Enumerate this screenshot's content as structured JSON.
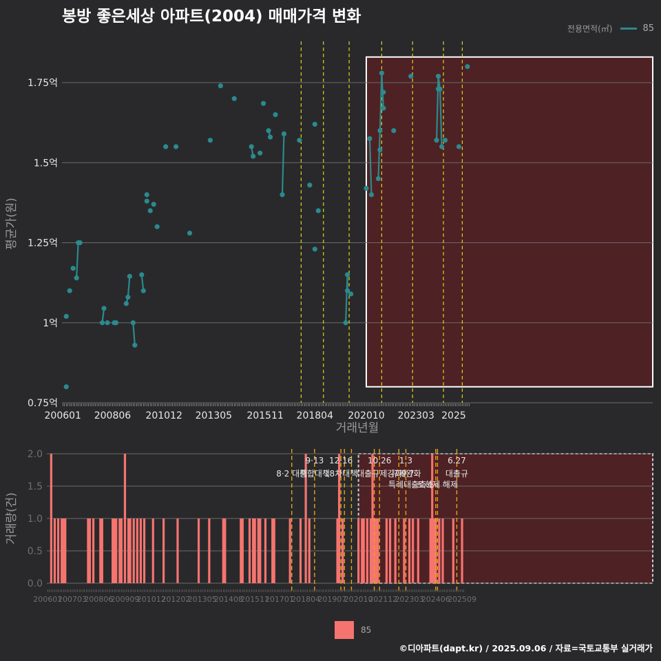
{
  "title": "봉방 좋은세상 아파트(2004) 매매가격 변화",
  "credit": "©디아파트(dapt.kr) / 2025.09.06 / 자료=국토교통부 실거래가",
  "colors": {
    "background": "#29292b",
    "price_line": "#2b8a8e",
    "bar": "#f57470",
    "vline_yellow": "#e0d21a",
    "vline_orange": "#e8a317",
    "highlight_fill": "#4e2124",
    "grid": "#6a6a6a"
  },
  "legend_top": {
    "title": "전용면적(㎡)",
    "value": "85"
  },
  "legend_bottom": {
    "value": "85"
  },
  "chart_data": [
    {
      "type": "line",
      "title": "봉방 좋은세상 아파트(2004) 매매가격 변화",
      "xlabel": "거래년월",
      "ylabel": "평균가(원)",
      "x_ticks": [
        "200601",
        "200806",
        "201012",
        "201305",
        "201511",
        "201804",
        "202010",
        "202303",
        "2025"
      ],
      "y_ticks": [
        "0.75억",
        "1억",
        "1.25억",
        "1.5억",
        "1.75억"
      ],
      "ylim": [
        0.75,
        1.85
      ],
      "unit": "억",
      "highlight": {
        "x_start": "2020-10",
        "x_end": "2025-09",
        "y_start": 0.8,
        "y_end": 1.83
      },
      "policy_lines": [
        "2017-08",
        "2018-09",
        "2019-12",
        "2021-07",
        "2023-01",
        "2024-07",
        "2025-06"
      ],
      "series": [
        {
          "name": "85",
          "points": [
            [
              "2006-03",
              0.8
            ],
            [
              "2006-03",
              1.02
            ],
            [
              "2006-05",
              1.1
            ],
            [
              "2006-07",
              1.17
            ],
            [
              "2006-09",
              1.14
            ],
            [
              "2006-10",
              1.25
            ],
            [
              "2006-11",
              1.25
            ],
            [
              "2007-12",
              1.0
            ],
            [
              "2008-01",
              1.045
            ],
            [
              "2008-03",
              1.0
            ],
            [
              "2008-07",
              1.0
            ],
            [
              "2008-08",
              1.0
            ],
            [
              "2009-02",
              1.06
            ],
            [
              "2009-03",
              1.08
            ],
            [
              "2009-04",
              1.145
            ],
            [
              "2009-06",
              1.0
            ],
            [
              "2009-07",
              0.93
            ],
            [
              "2009-11",
              1.15
            ],
            [
              "2009-12",
              1.1
            ],
            [
              "2010-02",
              1.4
            ],
            [
              "2010-02",
              1.38
            ],
            [
              "2010-04",
              1.35
            ],
            [
              "2010-06",
              1.37
            ],
            [
              "2010-08",
              1.3
            ],
            [
              "2011-01",
              1.55
            ],
            [
              "2011-07",
              1.55
            ],
            [
              "2012-03",
              1.28
            ],
            [
              "2013-03",
              1.57
            ],
            [
              "2013-09",
              1.74
            ],
            [
              "2014-05",
              1.7
            ],
            [
              "2015-03",
              1.55
            ],
            [
              "2015-04",
              1.52
            ],
            [
              "2015-08",
              1.53
            ],
            [
              "2015-10",
              1.685
            ],
            [
              "2016-01",
              1.6
            ],
            [
              "2016-02",
              1.58
            ],
            [
              "2016-05",
              1.65
            ],
            [
              "2016-09",
              1.4
            ],
            [
              "2016-10",
              1.59
            ],
            [
              "2017-07",
              1.57
            ],
            [
              "2018-01",
              1.43
            ],
            [
              "2018-04",
              1.62
            ],
            [
              "2018-04",
              1.23
            ],
            [
              "2018-06",
              1.35
            ],
            [
              "2019-10",
              1.0
            ],
            [
              "2019-11",
              1.15
            ],
            [
              "2019-11",
              1.1
            ],
            [
              "2020-01",
              1.09
            ],
            [
              "2020-10",
              1.42
            ],
            [
              "2020-12",
              1.575
            ],
            [
              "2021-01",
              1.4
            ],
            [
              "2021-05",
              1.45
            ],
            [
              "2021-06",
              1.6
            ],
            [
              "2021-06",
              1.54
            ],
            [
              "2021-07",
              1.78
            ],
            [
              "2021-08",
              1.72
            ],
            [
              "2021-08",
              1.67
            ],
            [
              "2022-02",
              1.6
            ],
            [
              "2022-12",
              1.77
            ],
            [
              "2024-03",
              1.57
            ],
            [
              "2024-04",
              1.77
            ],
            [
              "2024-04",
              1.73
            ],
            [
              "2024-05",
              1.73
            ],
            [
              "2024-06",
              1.55
            ],
            [
              "2024-08",
              1.57
            ],
            [
              "2025-04",
              1.55
            ],
            [
              "2025-09",
              1.8
            ]
          ],
          "segments": [
            [
              [
                "2006-09",
                1.14
              ],
              [
                "2006-10",
                1.25
              ],
              [
                "2006-11",
                1.25
              ]
            ],
            [
              [
                "2007-12",
                1.0
              ],
              [
                "2008-01",
                1.045
              ]
            ],
            [
              [
                "2008-07",
                1.0
              ],
              [
                "2008-08",
                1.0
              ]
            ],
            [
              [
                "2009-02",
                1.06
              ],
              [
                "2009-03",
                1.08
              ],
              [
                "2009-04",
                1.145
              ]
            ],
            [
              [
                "2009-06",
                1.0
              ],
              [
                "2009-07",
                0.93
              ]
            ],
            [
              [
                "2009-11",
                1.15
              ],
              [
                "2009-12",
                1.1
              ]
            ],
            [
              [
                "2015-03",
                1.55
              ],
              [
                "2015-04",
                1.52
              ]
            ],
            [
              [
                "2016-01",
                1.6
              ],
              [
                "2016-02",
                1.58
              ]
            ],
            [
              [
                "2016-09",
                1.4
              ],
              [
                "2016-10",
                1.59
              ]
            ],
            [
              [
                "2019-10",
                1.0
              ],
              [
                "2019-11",
                1.15
              ],
              [
                "2019-11",
                1.1
              ],
              [
                "2020-01",
                1.09
              ]
            ],
            [
              [
                "2020-12",
                1.575
              ],
              [
                "2021-01",
                1.4
              ]
            ],
            [
              [
                "2021-05",
                1.45
              ],
              [
                "2021-06",
                1.6
              ],
              [
                "2021-07",
                1.78
              ],
              [
                "2021-08",
                1.67
              ]
            ],
            [
              [
                "2024-03",
                1.57
              ],
              [
                "2024-04",
                1.77
              ],
              [
                "2024-05",
                1.73
              ],
              [
                "2024-06",
                1.55
              ]
            ]
          ]
        }
      ]
    },
    {
      "type": "bar",
      "ylabel": "거래량(건)",
      "x_ticks": [
        "200601",
        "200703",
        "200806",
        "200909",
        "201012",
        "201202",
        "201305",
        "201408",
        "201511",
        "201701",
        "201804",
        "201907",
        "202010",
        "202112",
        "202303",
        "202406",
        "202509"
      ],
      "y_ticks": [
        "0.0",
        "0.5",
        "1.0",
        "1.5",
        "2.0"
      ],
      "ylim": [
        0,
        2
      ],
      "highlight": {
        "x_start": "2020-10",
        "x_end": "2025-09"
      },
      "policy_lines": [
        "2017-08",
        "2018-09",
        "2019-12",
        "2020-02",
        "2020-06",
        "2021-07",
        "2021-10",
        "2022-09",
        "2023-01",
        "2024-06",
        "2024-07",
        "2025-06"
      ],
      "annotations": [
        {
          "date": "2017-08",
          "label": "8·2 대책",
          "row": 2
        },
        {
          "date": "2018-09",
          "label": "9·13",
          "row": 1
        },
        {
          "date": "2018-09",
          "label": "종합대책",
          "row": 2
        },
        {
          "date": "2019-12",
          "label": "12·16",
          "row": 1
        },
        {
          "date": "2019-12",
          "label": "18차대책",
          "row": 2
        },
        {
          "date": "2021-10",
          "label": "10.26",
          "row": 1
        },
        {
          "date": "2021-10",
          "label": "대출규제강화",
          "row": 2
        },
        {
          "date": "2023-01",
          "label": "1.3",
          "row": 1
        },
        {
          "date": "2023-01",
          "label": "규제완화",
          "row": 2
        },
        {
          "date": "2023-02",
          "label": "9.7",
          "row": 2
        },
        {
          "date": "2023-04",
          "label": "특례대출축소",
          "row": 3
        },
        {
          "date": "2024-07",
          "label": "토허제 해제",
          "row": 3
        },
        {
          "date": "2025-06",
          "label": "6.27",
          "row": 1
        },
        {
          "date": "2025-06",
          "label": "대출규",
          "row": 2
        }
      ],
      "series": [
        {
          "name": "85",
          "bars": [
            [
              "2006-03",
              2
            ],
            [
              "2006-05",
              1
            ],
            [
              "2006-07",
              1
            ],
            [
              "2006-09",
              1
            ],
            [
              "2006-10",
              1
            ],
            [
              "2006-11",
              1
            ],
            [
              "2007-12",
              1
            ],
            [
              "2008-01",
              1
            ],
            [
              "2008-03",
              1
            ],
            [
              "2008-07",
              1
            ],
            [
              "2008-08",
              1
            ],
            [
              "2009-02",
              1
            ],
            [
              "2009-03",
              1
            ],
            [
              "2009-04",
              1
            ],
            [
              "2009-06",
              1
            ],
            [
              "2009-07",
              1
            ],
            [
              "2009-09",
              2
            ],
            [
              "2009-11",
              1
            ],
            [
              "2009-12",
              1
            ],
            [
              "2010-02",
              1
            ],
            [
              "2010-04",
              1
            ],
            [
              "2010-06",
              1
            ],
            [
              "2010-08",
              1
            ],
            [
              "2011-01",
              1
            ],
            [
              "2011-07",
              1
            ],
            [
              "2012-03",
              1
            ],
            [
              "2013-03",
              1
            ],
            [
              "2013-09",
              1
            ],
            [
              "2014-05",
              1
            ],
            [
              "2014-06",
              1
            ],
            [
              "2015-03",
              1
            ],
            [
              "2015-04",
              1
            ],
            [
              "2015-08",
              1
            ],
            [
              "2015-10",
              1
            ],
            [
              "2015-11",
              1
            ],
            [
              "2016-01",
              1
            ],
            [
              "2016-02",
              1
            ],
            [
              "2016-05",
              1
            ],
            [
              "2016-09",
              1
            ],
            [
              "2016-10",
              1
            ],
            [
              "2017-07",
              1
            ],
            [
              "2018-01",
              1
            ],
            [
              "2018-04",
              2
            ],
            [
              "2018-06",
              1
            ],
            [
              "2019-10",
              1
            ],
            [
              "2019-11",
              2
            ],
            [
              "2020-01",
              1
            ],
            [
              "2020-10",
              1
            ],
            [
              "2020-12",
              1
            ],
            [
              "2021-01",
              1
            ],
            [
              "2021-03",
              1
            ],
            [
              "2021-05",
              1
            ],
            [
              "2021-06",
              2
            ],
            [
              "2021-07",
              1
            ],
            [
              "2021-08",
              1
            ],
            [
              "2021-09",
              1
            ],
            [
              "2022-02",
              1
            ],
            [
              "2022-04",
              1
            ],
            [
              "2022-07",
              1
            ],
            [
              "2022-12",
              1
            ],
            [
              "2023-03",
              1
            ],
            [
              "2023-05",
              1
            ],
            [
              "2023-08",
              1
            ],
            [
              "2024-03",
              1
            ],
            [
              "2024-04",
              2
            ],
            [
              "2024-05",
              1
            ],
            [
              "2024-06",
              1
            ],
            [
              "2024-08",
              1
            ],
            [
              "2024-10",
              1
            ],
            [
              "2025-04",
              1
            ],
            [
              "2025-09",
              1
            ]
          ]
        }
      ]
    }
  ]
}
